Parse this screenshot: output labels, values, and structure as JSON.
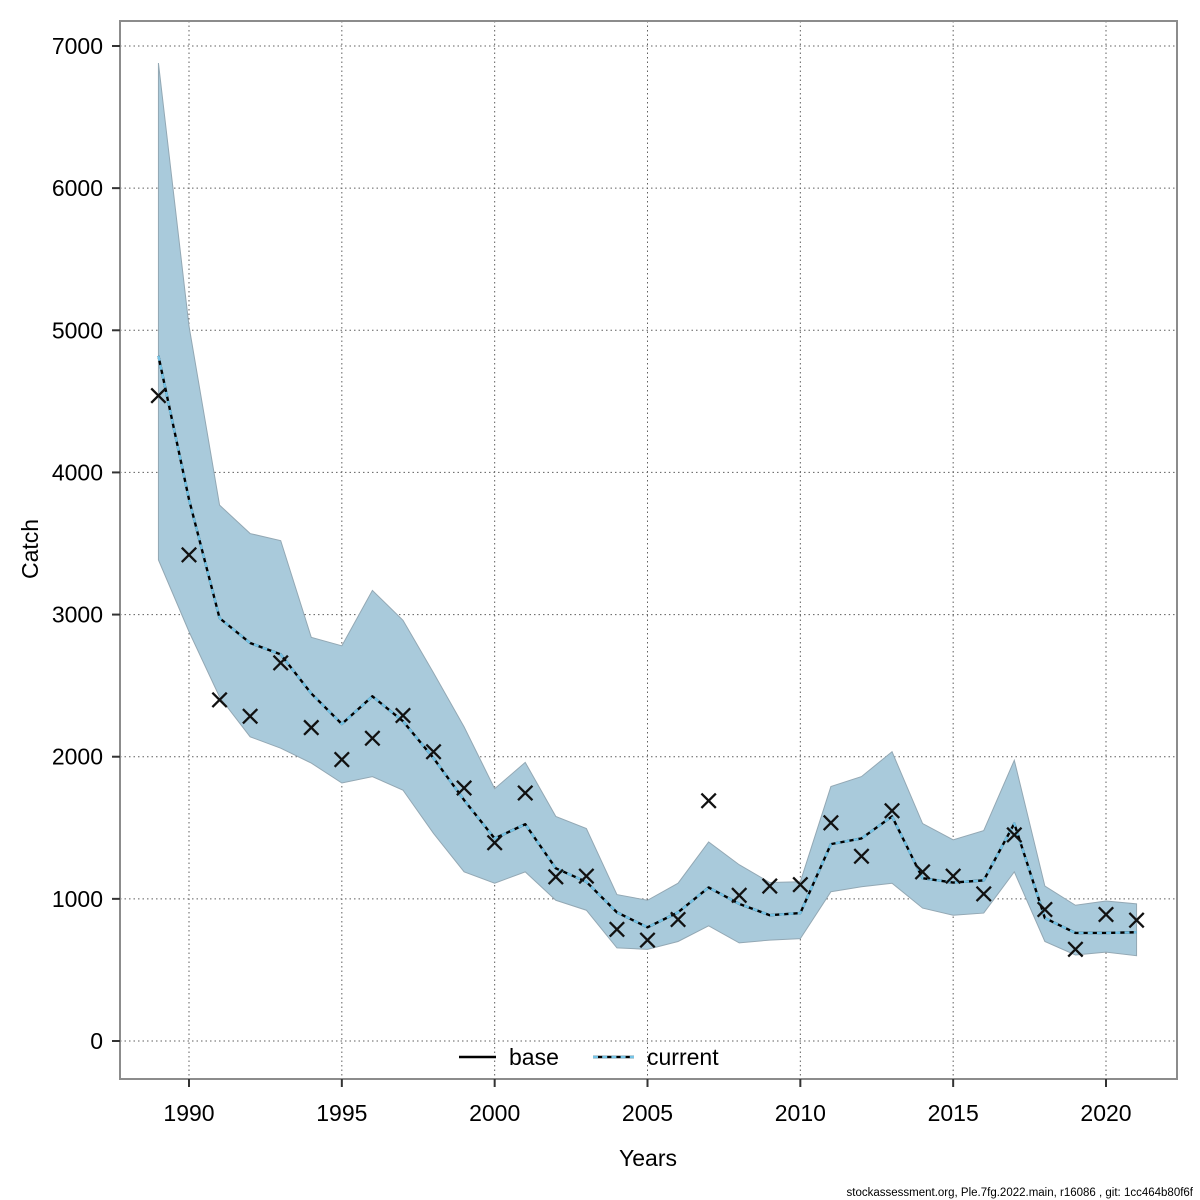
{
  "footer": {
    "text": "stockassessment.org, Ple.7fg.2022.main, r16086 , git: 1cc464b80f6f"
  },
  "chart_data": {
    "type": "line",
    "title": "",
    "xlabel": "Years",
    "ylabel": "Catch",
    "grid": "dotted",
    "legend_position": "bottom-center-inside",
    "xlim": [
      1987.7,
      2022.3
    ],
    "ylim": [
      -270,
      7185
    ],
    "x_ticks": [
      1990,
      1995,
      2000,
      2005,
      2010,
      2015,
      2020
    ],
    "y_ticks": [
      0,
      1000,
      2000,
      3000,
      4000,
      5000,
      6000,
      7000
    ],
    "x": [
      1989,
      1990,
      1991,
      1992,
      1993,
      1994,
      1995,
      1996,
      1997,
      1998,
      1999,
      2000,
      2001,
      2002,
      2003,
      2004,
      2005,
      2006,
      2007,
      2008,
      2009,
      2010,
      2011,
      2012,
      2013,
      2014,
      2015,
      2016,
      2017,
      2018,
      2019,
      2020,
      2021
    ],
    "series": [
      {
        "name": "observed-catches",
        "style": "x-markers",
        "color": "#111111",
        "values": [
          4540,
          3420,
          2400,
          2285,
          2660,
          2205,
          1980,
          2130,
          2290,
          2035,
          1780,
          1395,
          1745,
          1155,
          1160,
          785,
          710,
          855,
          1690,
          1025,
          1090,
          1100,
          1535,
          1300,
          1620,
          1190,
          1160,
          1035,
          1450,
          925,
          645,
          890,
          850
        ]
      },
      {
        "name": "base",
        "style": "solid",
        "color": "#000000",
        "values": [
          4820,
          3810,
          2975,
          2800,
          2720,
          2445,
          2230,
          2425,
          2250,
          1990,
          1695,
          1425,
          1525,
          1215,
          1120,
          905,
          800,
          905,
          1080,
          965,
          885,
          900,
          1385,
          1425,
          1580,
          1145,
          1115,
          1130,
          1530,
          865,
          760,
          760,
          765
        ]
      },
      {
        "name": "current",
        "style": "dashed",
        "color": "#74c3e6",
        "values": [
          4820,
          3810,
          2975,
          2800,
          2720,
          2445,
          2230,
          2425,
          2250,
          1990,
          1695,
          1425,
          1525,
          1215,
          1120,
          905,
          800,
          905,
          1080,
          965,
          885,
          900,
          1385,
          1425,
          1580,
          1145,
          1115,
          1130,
          1530,
          865,
          760,
          760,
          765
        ]
      }
    ],
    "band": {
      "name": "confidence-band",
      "fill": "#a9cadb",
      "edge": "#93a8b4",
      "upper": [
        6880,
        5030,
        3770,
        3570,
        3520,
        2840,
        2780,
        3170,
        2960,
        2590,
        2210,
        1775,
        1960,
        1580,
        1495,
        1030,
        990,
        1110,
        1400,
        1240,
        1115,
        1120,
        1790,
        1860,
        2035,
        1530,
        1415,
        1480,
        1975,
        1090,
        955,
        985,
        965
      ],
      "lower": [
        3385,
        2880,
        2420,
        2140,
        2060,
        1955,
        1815,
        1860,
        1765,
        1460,
        1190,
        1110,
        1190,
        990,
        920,
        655,
        645,
        700,
        810,
        690,
        710,
        720,
        1050,
        1085,
        1110,
        935,
        885,
        900,
        1190,
        700,
        605,
        625,
        600
      ]
    },
    "legend": [
      {
        "label": "base",
        "style": "solid-black"
      },
      {
        "label": "current",
        "style": "dashed-blue"
      }
    ]
  }
}
